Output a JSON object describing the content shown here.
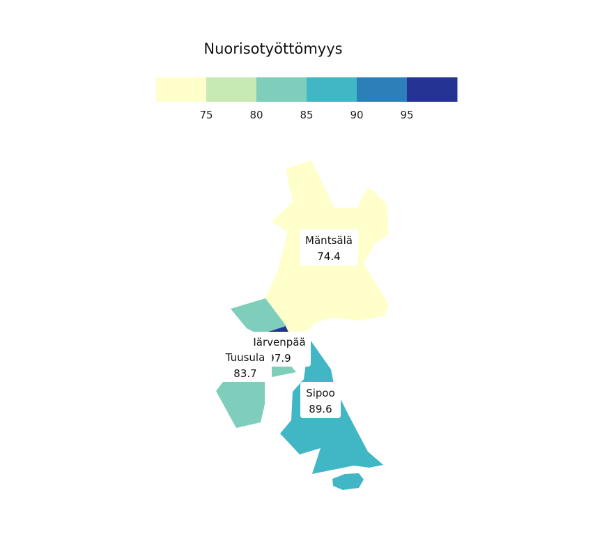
{
  "legend": {
    "title": "Nuorisotyöttömyys",
    "colors": [
      "#ffffcc",
      "#c7e9b4",
      "#7fcdbb",
      "#41b6c4",
      "#2c7fb8",
      "#253494"
    ],
    "ticks": [
      "75",
      "80",
      "85",
      "90",
      "95"
    ]
  },
  "regions": [
    {
      "name": "Mäntsälä",
      "value": "74.4",
      "color": "#ffffcc"
    },
    {
      "name": "Tuusula",
      "value": "83.7",
      "color": "#7fcdbb"
    },
    {
      "name": "Järvenpää",
      "value": "97.9",
      "color": "#253494"
    },
    {
      "name": "Sipoo",
      "value": "89.6",
      "color": "#41b6c4"
    }
  ]
}
